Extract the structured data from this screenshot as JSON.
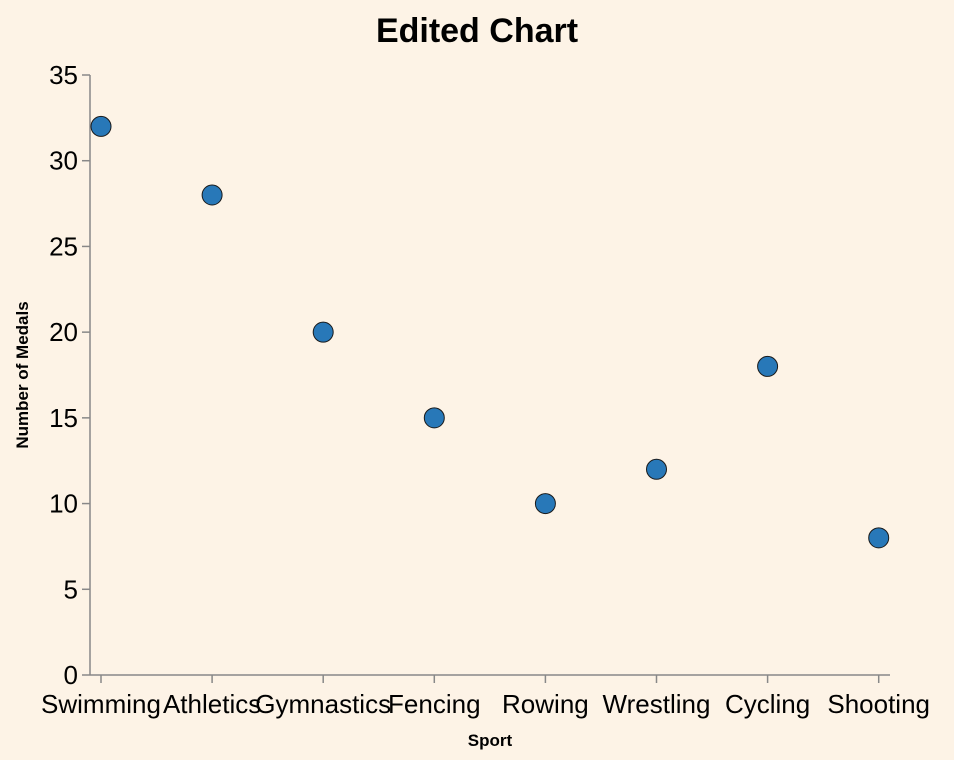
{
  "chart_data": {
    "type": "scatter",
    "title": "Edited Chart",
    "xlabel": "Sport",
    "ylabel": "Number of Medals",
    "categories": [
      "Swimming",
      "Athletics",
      "Gymnastics",
      "Fencing",
      "Rowing",
      "Wrestling",
      "Cycling",
      "Shooting"
    ],
    "series": [
      {
        "values": [
          32,
          28,
          20,
          15,
          10,
          12,
          18,
          8
        ]
      }
    ],
    "ylim": [
      0,
      35
    ],
    "yticks": [
      0,
      5,
      10,
      15,
      20,
      25,
      30,
      35
    ],
    "grid": false,
    "colors": {
      "point": "#2878b8",
      "background": "#fdf3e6",
      "axis": "#888888"
    }
  }
}
